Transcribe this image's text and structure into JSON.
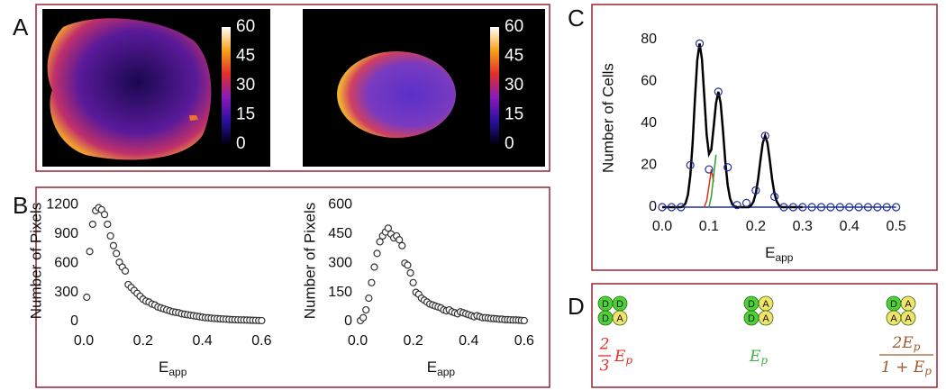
{
  "panel_labels": [
    "A",
    "B",
    "C",
    "D"
  ],
  "chart_data": [
    {
      "type": "image",
      "clim": [
        0,
        60
      ],
      "colorbar_ticks": [
        0,
        15,
        30,
        45,
        60
      ]
    },
    {
      "type": "image",
      "clim": [
        0,
        60
      ],
      "colorbar_ticks": [
        0,
        15,
        30,
        45,
        60
      ]
    },
    {
      "type": "scatter",
      "ylabel": "Number of Pixels",
      "xlabel": "E",
      "xlabel_sub": "app",
      "color": "#333333",
      "x": [
        0.01,
        0.02,
        0.03,
        0.04,
        0.05,
        0.06,
        0.07,
        0.08,
        0.09,
        0.1,
        0.11,
        0.12,
        0.13,
        0.14,
        0.15,
        0.16,
        0.17,
        0.18,
        0.19,
        0.2,
        0.21,
        0.22,
        0.23,
        0.24,
        0.25,
        0.26,
        0.27,
        0.28,
        0.29,
        0.3,
        0.31,
        0.32,
        0.33,
        0.34,
        0.35,
        0.36,
        0.37,
        0.38,
        0.39,
        0.4,
        0.41,
        0.42,
        0.43,
        0.44,
        0.45,
        0.46,
        0.47,
        0.48,
        0.49,
        0.5,
        0.51,
        0.52,
        0.53,
        0.54,
        0.55,
        0.56,
        0.57,
        0.58,
        0.59,
        0.6
      ],
      "values": [
        250,
        720,
        1000,
        1140,
        1170,
        1150,
        1100,
        1000,
        880,
        780,
        700,
        610,
        560,
        520,
        380,
        350,
        320,
        290,
        260,
        230,
        210,
        200,
        180,
        170,
        150,
        140,
        130,
        120,
        110,
        100,
        95,
        90,
        80,
        75,
        70,
        65,
        60,
        55,
        50,
        45,
        40,
        38,
        35,
        32,
        30,
        28,
        26,
        24,
        22,
        20,
        19,
        18,
        17,
        16,
        15,
        14,
        13,
        12,
        11,
        10
      ],
      "xlim": [
        0,
        0.62
      ],
      "ylim": [
        0,
        1250
      ],
      "xticks": [
        {
          "value": 0,
          "label": "0.0"
        },
        0.2,
        0.4,
        0.6
      ],
      "yticks": [
        0,
        300,
        600,
        900,
        1200
      ]
    },
    {
      "type": "scatter",
      "ylabel": "Number of Pixels",
      "xlabel": "E",
      "xlabel_sub": "app",
      "color": "#333333",
      "x": [
        0.01,
        0.02,
        0.03,
        0.04,
        0.05,
        0.06,
        0.07,
        0.08,
        0.09,
        0.1,
        0.11,
        0.12,
        0.13,
        0.14,
        0.15,
        0.16,
        0.17,
        0.18,
        0.19,
        0.2,
        0.21,
        0.22,
        0.23,
        0.24,
        0.25,
        0.26,
        0.27,
        0.28,
        0.29,
        0.3,
        0.31,
        0.32,
        0.33,
        0.34,
        0.35,
        0.36,
        0.37,
        0.38,
        0.39,
        0.4,
        0.41,
        0.42,
        0.43,
        0.44,
        0.45,
        0.46,
        0.47,
        0.48,
        0.49,
        0.5,
        0.51,
        0.52,
        0.53,
        0.54,
        0.55,
        0.56,
        0.57,
        0.58,
        0.59,
        0.6
      ],
      "values": [
        5,
        20,
        60,
        120,
        200,
        280,
        350,
        410,
        440,
        460,
        480,
        450,
        430,
        440,
        420,
        390,
        300,
        290,
        250,
        200,
        150,
        140,
        120,
        110,
        100,
        90,
        85,
        80,
        75,
        70,
        60,
        55,
        60,
        50,
        45,
        40,
        50,
        45,
        40,
        35,
        30,
        25,
        30,
        25,
        20,
        20,
        18,
        16,
        15,
        14,
        12,
        12,
        10,
        10,
        9,
        8,
        8,
        7,
        6,
        5
      ],
      "xlim": [
        0,
        0.62
      ],
      "ylim": [
        0,
        625
      ],
      "xticks": [
        {
          "value": 0,
          "label": "0.0"
        },
        0.2,
        0.4,
        0.6
      ],
      "yticks": [
        0,
        150,
        300,
        450,
        600
      ]
    },
    {
      "type": "scatter",
      "ylabel": "Number of Cells",
      "xlabel": "E",
      "xlabel_sub": "app",
      "color": "#1f2f9e",
      "x": [
        0,
        0.02,
        0.04,
        0.06,
        0.08,
        0.1,
        0.12,
        0.14,
        0.16,
        0.18,
        0.2,
        0.22,
        0.24,
        0.26,
        0.28,
        0.3,
        0.32,
        0.34,
        0.36,
        0.38,
        0.4,
        0.42,
        0.44,
        0.46,
        0.48,
        0.5
      ],
      "values": [
        0,
        0,
        0,
        20,
        78,
        18,
        55,
        19,
        1,
        2,
        8,
        34,
        5,
        0,
        0,
        0,
        0,
        0,
        0,
        0,
        0,
        0,
        0,
        0,
        0,
        0
      ],
      "xlim": [
        0,
        0.52
      ],
      "ylim": [
        0,
        85
      ],
      "xticks": [
        {
          "value": 0,
          "label": "0.0"
        },
        0.1,
        0.2,
        0.3,
        0.4,
        0.5
      ],
      "yticks": [
        0,
        20,
        40,
        60,
        80
      ],
      "lines": [
        {
          "color": "#1f2f9e",
          "x": [
            0,
            0.5
          ],
          "values": [
            0,
            0
          ]
        },
        {
          "color": "#e03020",
          "x": [
            0.09,
            0.095,
            0.1,
            0.105,
            0.11
          ],
          "values": [
            0,
            3,
            10,
            18,
            12
          ]
        },
        {
          "color": "#2ca02c",
          "x": [
            0.1,
            0.105,
            0.11,
            0.115
          ],
          "values": [
            0,
            5,
            15,
            25
          ]
        },
        {
          "color": "#000000",
          "x": [
            0,
            0.005,
            0.01,
            0.015,
            0.02,
            0.025,
            0.03,
            0.035,
            0.04,
            0.045,
            0.05,
            0.055,
            0.06,
            0.065,
            0.07,
            0.075,
            0.08,
            0.085,
            0.09,
            0.095,
            0.1,
            0.105,
            0.11,
            0.115,
            0.12,
            0.125,
            0.13,
            0.135,
            0.14,
            0.145,
            0.15,
            0.155,
            0.16,
            0.165,
            0.17,
            0.175,
            0.18,
            0.185,
            0.19,
            0.195,
            0.2,
            0.205,
            0.21,
            0.215,
            0.22,
            0.225,
            0.23,
            0.235,
            0.24,
            0.245,
            0.25,
            0.255,
            0.26,
            0.265,
            0.27,
            0.275,
            0.28,
            0.285,
            0.29,
            0.295,
            0.3
          ],
          "values": [
            0,
            0,
            0,
            0,
            0,
            0,
            0,
            0,
            0,
            0.5,
            1.9,
            5.9,
            14.8,
            30.4,
            51.5,
            70.2,
            78,
            70.5,
            52.8,
            34.6,
            25.3,
            27.4,
            38.2,
            49.5,
            55,
            49.5,
            36.3,
            21.5,
            10.5,
            4.2,
            1.3,
            0.3,
            0,
            0,
            0,
            0,
            0,
            0,
            0.8,
            2.6,
            6.5,
            13.3,
            22.4,
            30.6,
            34,
            30.6,
            22.4,
            13.3,
            6.5,
            2.6,
            0.8,
            0,
            0,
            0,
            0,
            0,
            0,
            0,
            0,
            0,
            0
          ]
        }
      ]
    }
  ],
  "diagram": {
    "colors": {
      "D": "#4cd137",
      "A": "#f3e36a"
    },
    "tetramers": [
      {
        "letters": [
          "D",
          "D",
          "D",
          "A"
        ]
      },
      {
        "letters": [
          "D",
          "A",
          "D",
          "A"
        ]
      },
      {
        "letters": [
          "D",
          "A",
          "A",
          "A"
        ]
      }
    ],
    "formulas": [
      {
        "color": "#e0302a",
        "numerator": "2",
        "denominator": "3",
        "main": "E",
        "sub": "p"
      },
      {
        "color": "#3cb043",
        "main": "E",
        "sub": "p"
      },
      {
        "color": "#a05a2c",
        "numerator": "2E",
        "numerator_sub": "p",
        "denominator": "1 + E",
        "denominator_sub": "p"
      }
    ]
  }
}
